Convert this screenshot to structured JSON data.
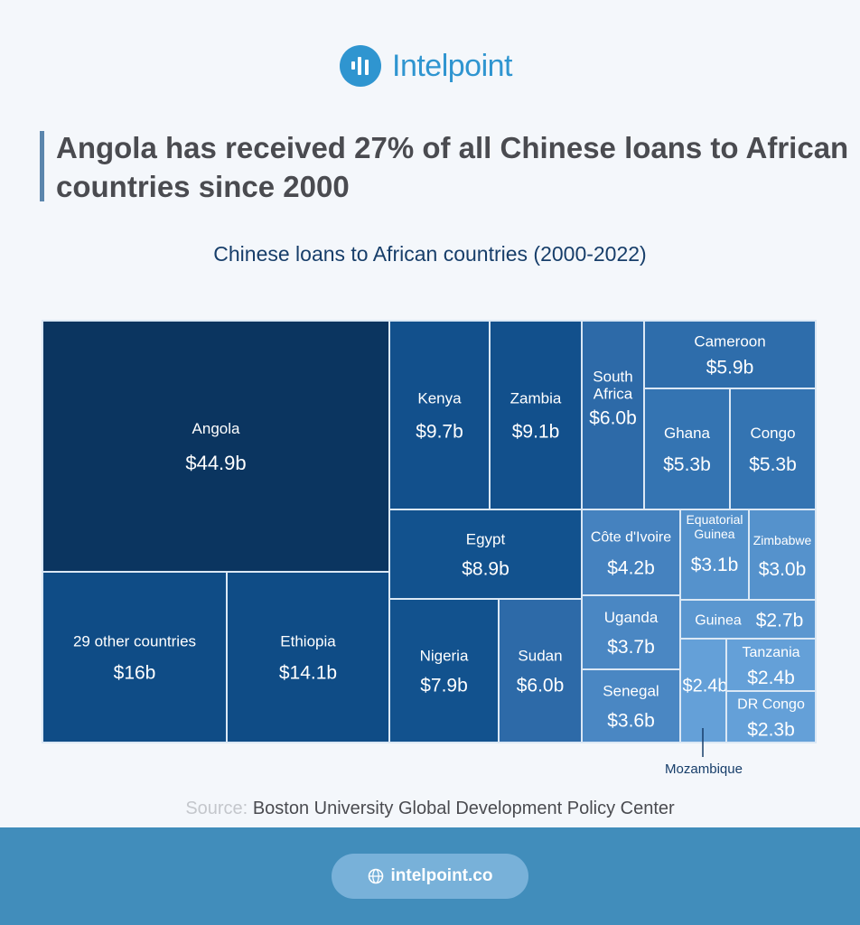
{
  "brand": {
    "name": "Intelpoint",
    "icon": "bar-chart-logo-icon",
    "color": "#2f95d0"
  },
  "headline": "Angola has received 27% of all Chinese loans to African countries since 2000",
  "source": {
    "label": "Source:",
    "text": "Boston University Global Development Policy Center"
  },
  "footer": {
    "url": "intelpoint.co",
    "icon": "globe-icon",
    "band_color": "#418dbb",
    "pill_color": "#78b1d9"
  },
  "chart_data": {
    "type": "treemap",
    "title": "Chinese loans to African countries (2000-2022)",
    "units": "USD billions",
    "items": [
      {
        "name": "Angola",
        "label": "$44.9b",
        "value": 44.9,
        "color": "#0b3560"
      },
      {
        "name": "29 other countries",
        "label": "$16b",
        "value": 16,
        "color": "#0f4c86"
      },
      {
        "name": "Ethiopia",
        "label": "$14.1b",
        "value": 14.1,
        "color": "#0f4c86"
      },
      {
        "name": "Kenya",
        "label": "$9.7b",
        "value": 9.7,
        "color": "#12508c"
      },
      {
        "name": "Zambia",
        "label": "$9.1b",
        "value": 9.1,
        "color": "#12508c"
      },
      {
        "name": "Egypt",
        "label": "$8.9b",
        "value": 8.9,
        "color": "#12528e"
      },
      {
        "name": "Nigeria",
        "label": "$7.9b",
        "value": 7.9,
        "color": "#12528e"
      },
      {
        "name": "Sudan",
        "label": "$6.0b",
        "value": 6.0,
        "color": "#2d6aa8"
      },
      {
        "name": "South Africa",
        "label": "$6.0b",
        "value": 6.0,
        "color": "#2d6aa8"
      },
      {
        "name": "Cameroon",
        "label": "$5.9b",
        "value": 5.9,
        "color": "#2e6dab"
      },
      {
        "name": "Ghana",
        "label": "$5.3b",
        "value": 5.3,
        "color": "#3474b2"
      },
      {
        "name": "Congo",
        "label": "$5.3b",
        "value": 5.3,
        "color": "#3474b2"
      },
      {
        "name": "Côte d'Ivoire",
        "label": "$4.2b",
        "value": 4.2,
        "color": "#4582bf"
      },
      {
        "name": "Uganda",
        "label": "$3.7b",
        "value": 3.7,
        "color": "#4a87c3"
      },
      {
        "name": "Senegal",
        "label": "$3.6b",
        "value": 3.6,
        "color": "#4a87c3"
      },
      {
        "name": "Equatorial Guinea",
        "label": "$3.1b",
        "value": 3.1,
        "color": "#5592cc"
      },
      {
        "name": "Zimbabwe",
        "label": "$3.0b",
        "value": 3.0,
        "color": "#5592cc"
      },
      {
        "name": "Guinea",
        "label": "$2.7b",
        "value": 2.7,
        "color": "#5b97d0"
      },
      {
        "name": "Mozambique",
        "label": "$2.4b",
        "value": 2.4,
        "color": "#64a0d8"
      },
      {
        "name": "Tanzania",
        "label": "$2.4b",
        "value": 2.4,
        "color": "#64a0d8"
      },
      {
        "name": "DR Congo",
        "label": "$2.3b",
        "value": 2.3,
        "color": "#64a0d8"
      }
    ],
    "callout": "Mozambique"
  }
}
